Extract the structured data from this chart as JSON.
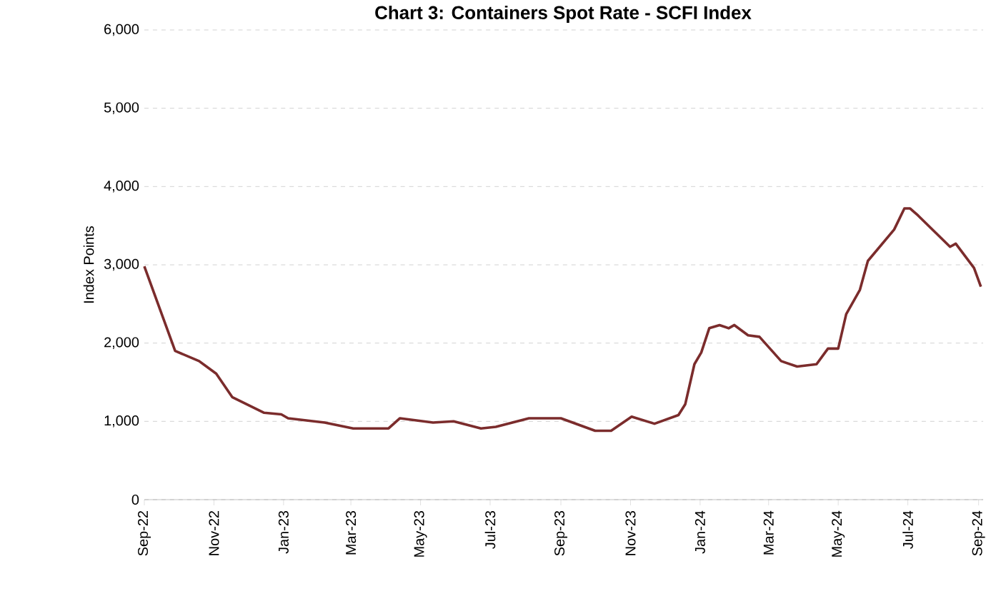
{
  "chart_data": {
    "type": "line",
    "title": "Chart 3: Containers Spot Rate - SCFI Index",
    "ylabel": "Index Points",
    "x": [
      "2022-09-01",
      "2022-09-28",
      "2022-10-19",
      "2022-11-03",
      "2022-11-17",
      "2022-12-15",
      "2022-12-30",
      "2023-01-05",
      "2023-02-06",
      "2023-03-03",
      "2023-04-03",
      "2023-04-13",
      "2023-05-12",
      "2023-05-30",
      "2023-06-23",
      "2023-07-06",
      "2023-08-04",
      "2023-08-16",
      "2023-09-01",
      "2023-10-01",
      "2023-10-15",
      "2023-11-02",
      "2023-11-22",
      "2023-12-13",
      "2023-12-19",
      "2023-12-27",
      "2024-01-02",
      "2024-01-09",
      "2024-01-18",
      "2024-01-26",
      "2024-01-31",
      "2024-02-12",
      "2024-02-22",
      "2024-03-12",
      "2024-03-26",
      "2024-04-12",
      "2024-04-22",
      "2024-05-01",
      "2024-05-08",
      "2024-05-20",
      "2024-05-27",
      "2024-06-19",
      "2024-06-28",
      "2024-07-03",
      "2024-07-10",
      "2024-08-07",
      "2024-08-12",
      "2024-08-28",
      "2024-09-03"
    ],
    "series": [
      {
        "color": "#7b2c2c",
        "values": [
          2980,
          1900,
          1770,
          1610,
          1310,
          1110,
          1090,
          1040,
          985,
          910,
          910,
          1040,
          985,
          1000,
          910,
          930,
          1040,
          1040,
          1040,
          880,
          880,
          1060,
          970,
          1080,
          1220,
          1730,
          1880,
          2190,
          2230,
          2190,
          2230,
          2100,
          2080,
          1770,
          1700,
          1730,
          1930,
          1930,
          2370,
          2680,
          3050,
          3450,
          3720,
          3720,
          3630,
          3230,
          3270,
          2960,
          2720
        ]
      }
    ],
    "xlim": [
      "2022-09-01",
      "2024-09-05"
    ],
    "xticks": [
      {
        "value": "2022-09-01",
        "label": "Sep-22"
      },
      {
        "value": "2022-11-01",
        "label": "Nov-22"
      },
      {
        "value": "2023-01-01",
        "label": "Jan-23"
      },
      {
        "value": "2023-03-01",
        "label": "Mar-23"
      },
      {
        "value": "2023-05-01",
        "label": "May-23"
      },
      {
        "value": "2023-07-01",
        "label": "Jul-23"
      },
      {
        "value": "2023-09-01",
        "label": "Sep-23"
      },
      {
        "value": "2023-11-01",
        "label": "Nov-23"
      },
      {
        "value": "2024-01-01",
        "label": "Jan-24"
      },
      {
        "value": "2024-03-01",
        "label": "Mar-24"
      },
      {
        "value": "2024-05-01",
        "label": "May-24"
      },
      {
        "value": "2024-07-01",
        "label": "Jul-24"
      },
      {
        "value": "2024-09-01",
        "label": "Sep-24"
      }
    ],
    "ylim": [
      0,
      6000
    ],
    "yticks": [
      {
        "value": 0,
        "label": "0"
      },
      {
        "value": 1000,
        "label": "1,000"
      },
      {
        "value": 2000,
        "label": "2,000"
      },
      {
        "value": 3000,
        "label": "3,000"
      },
      {
        "value": 4000,
        "label": "4,000"
      },
      {
        "value": 5000,
        "label": "5,000"
      },
      {
        "value": 6000,
        "label": "6,000"
      }
    ],
    "grid": "y",
    "legend": false,
    "marker": "none",
    "line_style": "solid"
  }
}
